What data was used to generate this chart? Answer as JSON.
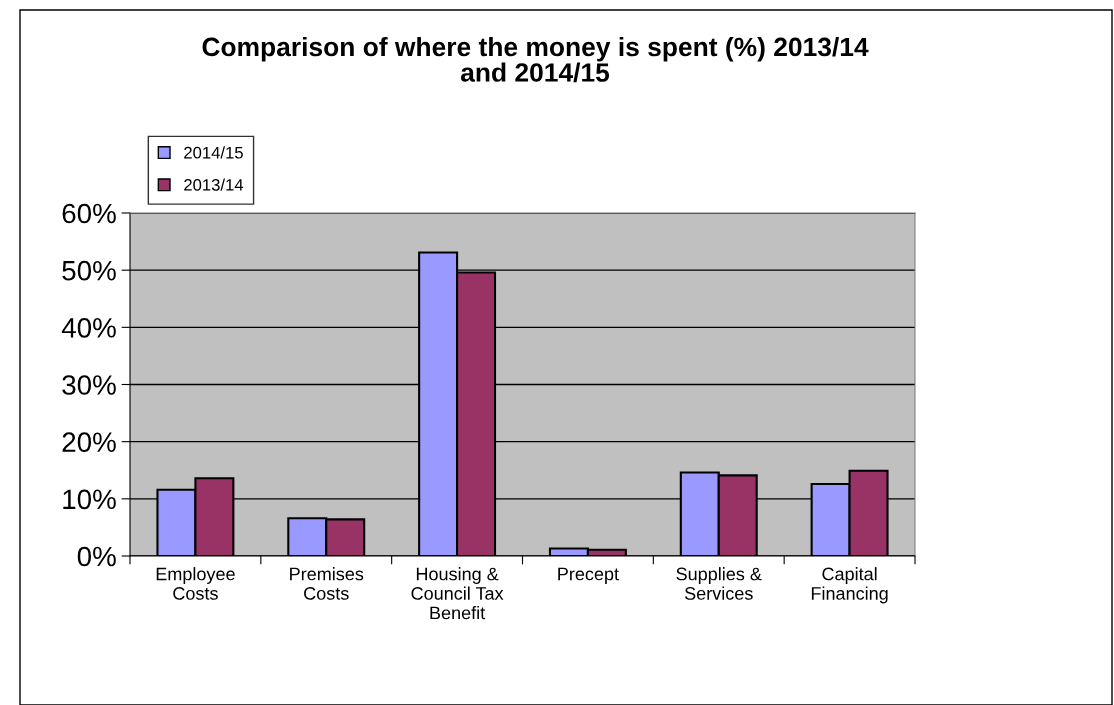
{
  "chart_data": {
    "type": "bar",
    "title": "Comparison of where the money is spent (%) 2013/14\nand 2014/15",
    "categories": [
      "Employee\nCosts",
      "Premises\nCosts",
      "Housing &\nCouncil Tax\nBenefit",
      "Precept",
      "Supplies &\nServices",
      "Capital\nFinancing"
    ],
    "series": [
      {
        "name": "2014/15",
        "color": "#9999ff",
        "values": [
          11.6,
          6.6,
          53.1,
          1.3,
          14.6,
          12.6
        ]
      },
      {
        "name": "2013/14",
        "color": "#993366",
        "values": [
          13.6,
          6.4,
          49.6,
          1.1,
          14.1,
          14.9
        ]
      }
    ],
    "ylim": [
      0,
      60
    ],
    "yticks": [
      {
        "value": 0,
        "label": "0%"
      },
      {
        "value": 10,
        "label": "10%"
      },
      {
        "value": 20,
        "label": "20%"
      },
      {
        "value": 30,
        "label": "30%"
      },
      {
        "value": 40,
        "label": "40%"
      },
      {
        "value": 50,
        "label": "50%"
      },
      {
        "value": 60,
        "label": "60%"
      }
    ],
    "grid": "y",
    "legend": "top left"
  }
}
